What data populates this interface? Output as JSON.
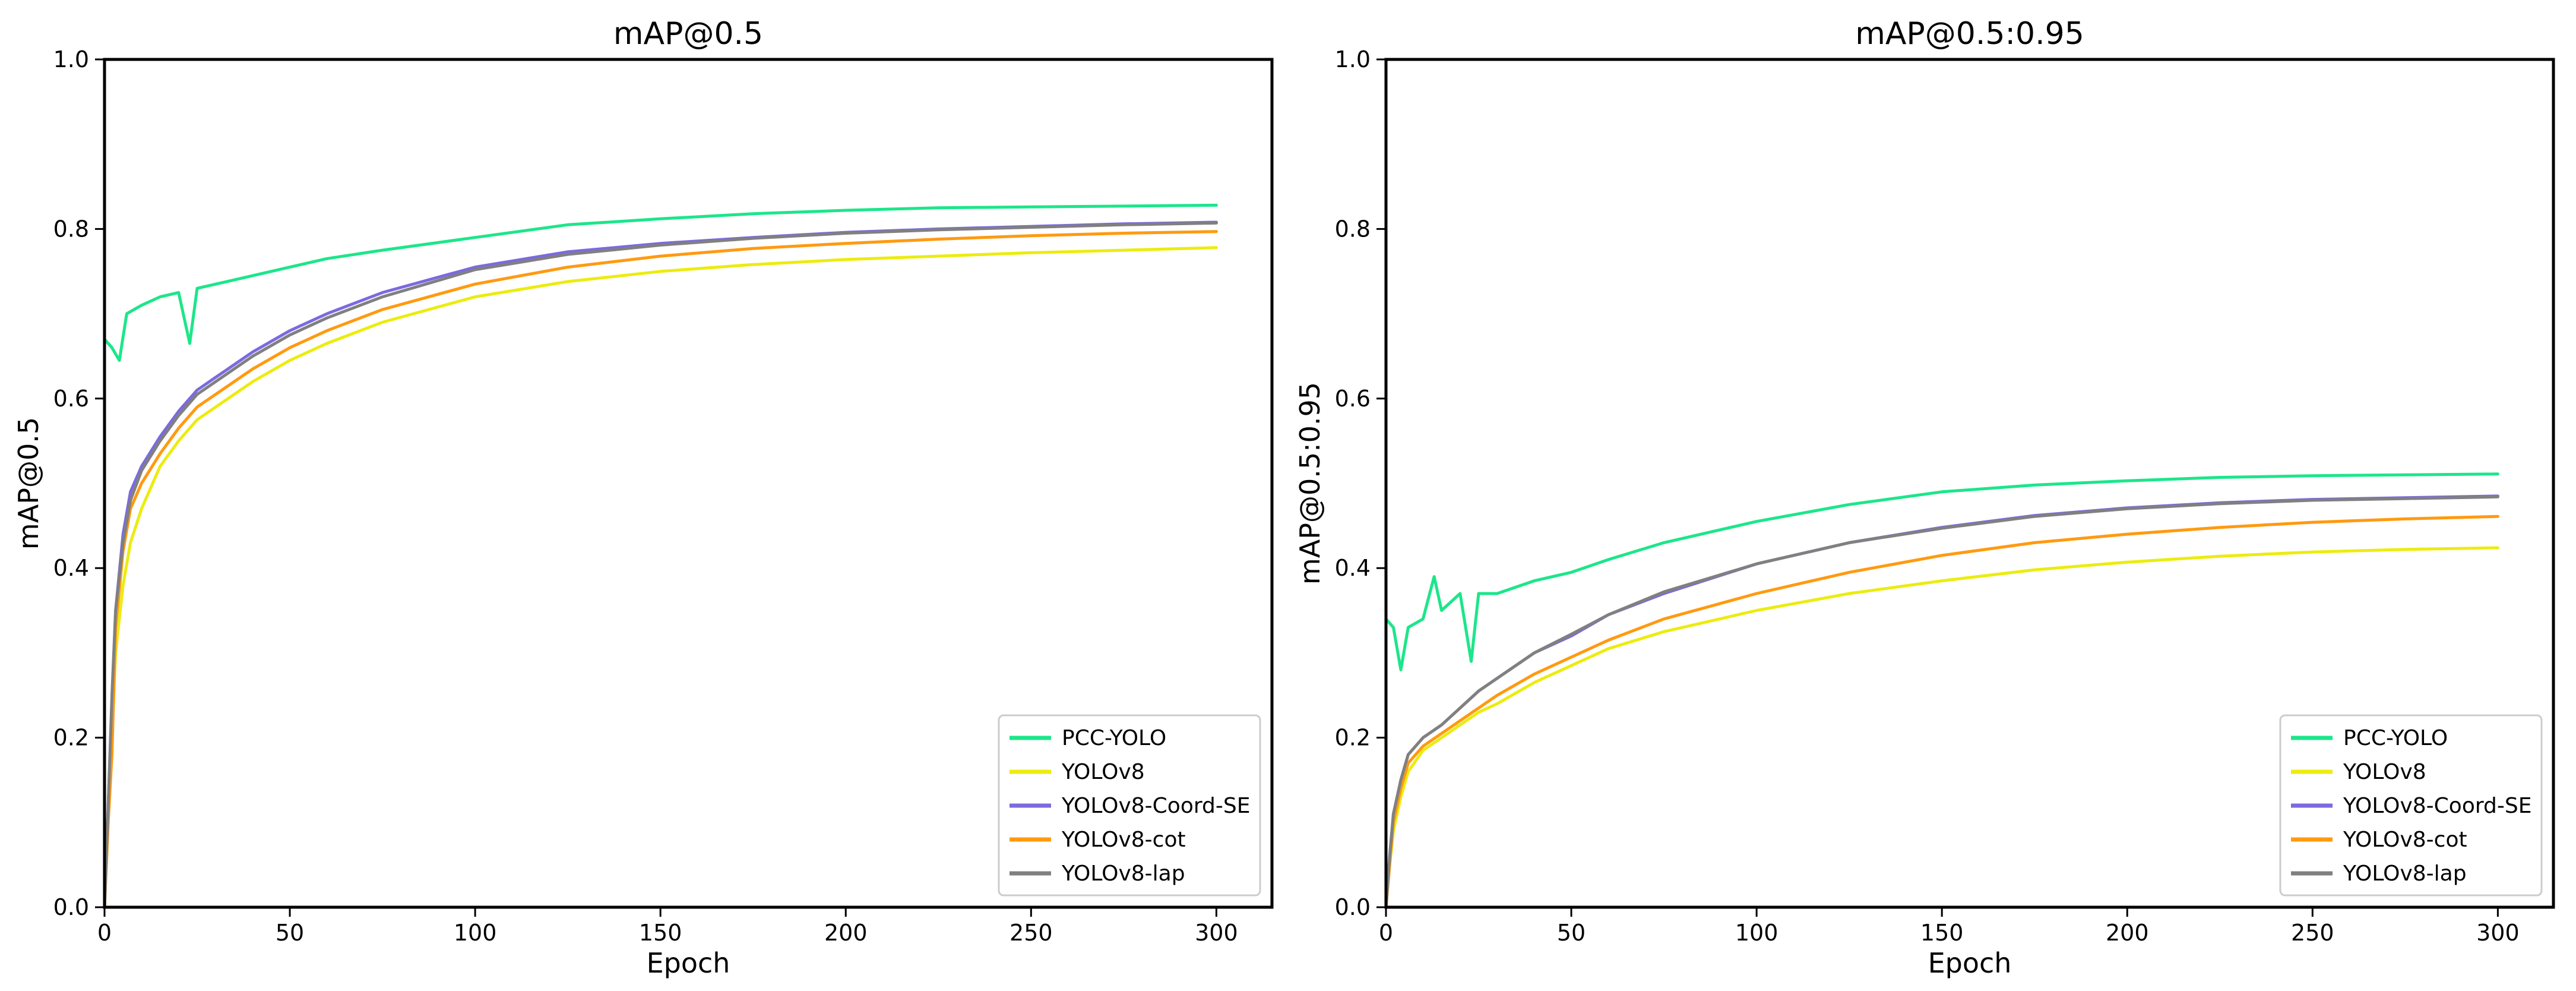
{
  "chart_data": [
    {
      "type": "line",
      "title": "mAP@0.5",
      "xlabel": "Epoch",
      "ylabel": "mAP@0.5",
      "xlim": [
        0,
        315
      ],
      "ylim": [
        0,
        1.0
      ],
      "xticks": [
        "0",
        "50",
        "100",
        "150",
        "200",
        "250",
        "300"
      ],
      "yticks": [
        "0.0",
        "0.2",
        "0.4",
        "0.6",
        "0.8",
        "1.0"
      ],
      "legend_position": "lower-right",
      "series": [
        {
          "name": "PCC-YOLO",
          "color": "#1ce68a",
          "x": [
            0,
            2,
            4,
            6,
            10,
            15,
            20,
            23,
            25,
            30,
            40,
            50,
            60,
            75,
            100,
            125,
            150,
            175,
            200,
            225,
            250,
            275,
            300
          ],
          "y": [
            0.67,
            0.66,
            0.645,
            0.7,
            0.71,
            0.72,
            0.725,
            0.665,
            0.73,
            0.735,
            0.745,
            0.755,
            0.765,
            0.775,
            0.79,
            0.805,
            0.812,
            0.818,
            0.822,
            0.825,
            0.826,
            0.827,
            0.828
          ]
        },
        {
          "name": "YOLOv8",
          "color": "#ecec10",
          "x": [
            0,
            1,
            2,
            3,
            5,
            7,
            10,
            15,
            20,
            25,
            30,
            40,
            50,
            60,
            75,
            100,
            125,
            150,
            175,
            200,
            225,
            250,
            275,
            300
          ],
          "y": [
            0.0,
            0.1,
            0.2,
            0.3,
            0.38,
            0.43,
            0.47,
            0.52,
            0.55,
            0.575,
            0.59,
            0.62,
            0.645,
            0.665,
            0.69,
            0.72,
            0.738,
            0.75,
            0.758,
            0.764,
            0.768,
            0.772,
            0.775,
            0.778
          ]
        },
        {
          "name": "YOLOv8-Coord-SE",
          "color": "#7b6ae0",
          "x": [
            0,
            1,
            2,
            3,
            5,
            7,
            10,
            15,
            20,
            25,
            30,
            40,
            50,
            60,
            75,
            100,
            125,
            150,
            175,
            200,
            225,
            250,
            275,
            300
          ],
          "y": [
            0.0,
            0.12,
            0.24,
            0.35,
            0.44,
            0.49,
            0.52,
            0.555,
            0.585,
            0.61,
            0.625,
            0.655,
            0.68,
            0.7,
            0.725,
            0.755,
            0.773,
            0.783,
            0.79,
            0.796,
            0.8,
            0.803,
            0.806,
            0.808
          ]
        },
        {
          "name": "YOLOv8-cot",
          "color": "#ff9a10",
          "x": [
            0,
            1,
            2,
            3,
            5,
            7,
            10,
            15,
            20,
            25,
            30,
            40,
            50,
            60,
            75,
            100,
            125,
            150,
            175,
            200,
            225,
            250,
            275,
            300
          ],
          "y": [
            0.0,
            0.1,
            0.18,
            0.33,
            0.42,
            0.47,
            0.5,
            0.535,
            0.565,
            0.59,
            0.605,
            0.635,
            0.66,
            0.68,
            0.705,
            0.735,
            0.755,
            0.768,
            0.777,
            0.783,
            0.788,
            0.792,
            0.795,
            0.797
          ]
        },
        {
          "name": "YOLOv8-lap",
          "color": "#808080",
          "x": [
            0,
            1,
            2,
            3,
            5,
            7,
            10,
            15,
            20,
            25,
            30,
            40,
            50,
            60,
            75,
            100,
            125,
            150,
            175,
            200,
            225,
            250,
            275,
            300
          ],
          "y": [
            0.0,
            0.12,
            0.25,
            0.35,
            0.43,
            0.48,
            0.515,
            0.55,
            0.58,
            0.605,
            0.62,
            0.65,
            0.675,
            0.695,
            0.72,
            0.752,
            0.77,
            0.781,
            0.789,
            0.795,
            0.799,
            0.802,
            0.805,
            0.807
          ]
        }
      ]
    },
    {
      "type": "line",
      "title": "mAP@0.5:0.95",
      "xlabel": "Epoch",
      "ylabel": "mAP@0.5:0.95",
      "xlim": [
        0,
        315
      ],
      "ylim": [
        0,
        1.0
      ],
      "xticks": [
        "0",
        "50",
        "100",
        "150",
        "200",
        "250",
        "300"
      ],
      "yticks": [
        "0.0",
        "0.2",
        "0.4",
        "0.6",
        "0.8",
        "1.0"
      ],
      "legend_position": "lower-right",
      "series": [
        {
          "name": "PCC-YOLO",
          "color": "#1ce68a",
          "x": [
            0,
            2,
            4,
            6,
            10,
            13,
            15,
            20,
            23,
            25,
            30,
            40,
            50,
            60,
            75,
            100,
            125,
            150,
            175,
            200,
            225,
            250,
            275,
            300
          ],
          "y": [
            0.34,
            0.33,
            0.28,
            0.33,
            0.34,
            0.39,
            0.35,
            0.37,
            0.29,
            0.37,
            0.37,
            0.385,
            0.395,
            0.41,
            0.43,
            0.455,
            0.475,
            0.49,
            0.498,
            0.503,
            0.507,
            0.509,
            0.51,
            0.511
          ]
        },
        {
          "name": "YOLOv8",
          "color": "#ecec10",
          "x": [
            0,
            1,
            2,
            4,
            6,
            10,
            15,
            20,
            25,
            30,
            40,
            50,
            60,
            75,
            100,
            125,
            150,
            175,
            200,
            225,
            250,
            275,
            300
          ],
          "y": [
            0.0,
            0.05,
            0.09,
            0.13,
            0.16,
            0.185,
            0.2,
            0.215,
            0.23,
            0.24,
            0.265,
            0.285,
            0.305,
            0.325,
            0.35,
            0.37,
            0.385,
            0.398,
            0.407,
            0.414,
            0.419,
            0.422,
            0.424
          ]
        },
        {
          "name": "YOLOv8-Coord-SE",
          "color": "#7b6ae0",
          "x": [
            0,
            1,
            2,
            4,
            6,
            10,
            15,
            20,
            25,
            30,
            40,
            50,
            60,
            75,
            100,
            125,
            150,
            175,
            200,
            225,
            250,
            275,
            300
          ],
          "y": [
            0.0,
            0.06,
            0.11,
            0.15,
            0.18,
            0.2,
            0.215,
            0.235,
            0.255,
            0.27,
            0.3,
            0.32,
            0.345,
            0.37,
            0.405,
            0.43,
            0.448,
            0.462,
            0.471,
            0.477,
            0.481,
            0.483,
            0.485
          ]
        },
        {
          "name": "YOLOv8-cot",
          "color": "#ff9a10",
          "x": [
            0,
            1,
            2,
            4,
            6,
            10,
            15,
            20,
            25,
            30,
            40,
            50,
            60,
            75,
            100,
            125,
            150,
            175,
            200,
            225,
            250,
            275,
            300
          ],
          "y": [
            0.0,
            0.05,
            0.1,
            0.14,
            0.17,
            0.19,
            0.205,
            0.22,
            0.235,
            0.25,
            0.275,
            0.295,
            0.315,
            0.34,
            0.37,
            0.395,
            0.415,
            0.43,
            0.44,
            0.448,
            0.454,
            0.458,
            0.461
          ]
        },
        {
          "name": "YOLOv8-lap",
          "color": "#808080",
          "x": [
            0,
            1,
            2,
            4,
            6,
            10,
            15,
            20,
            25,
            30,
            40,
            50,
            60,
            75,
            100,
            125,
            150,
            175,
            200,
            225,
            250,
            275,
            300
          ],
          "y": [
            0.0,
            0.06,
            0.11,
            0.15,
            0.18,
            0.2,
            0.215,
            0.235,
            0.255,
            0.27,
            0.3,
            0.322,
            0.345,
            0.372,
            0.405,
            0.43,
            0.447,
            0.461,
            0.47,
            0.476,
            0.48,
            0.482,
            0.484
          ]
        }
      ]
    }
  ]
}
